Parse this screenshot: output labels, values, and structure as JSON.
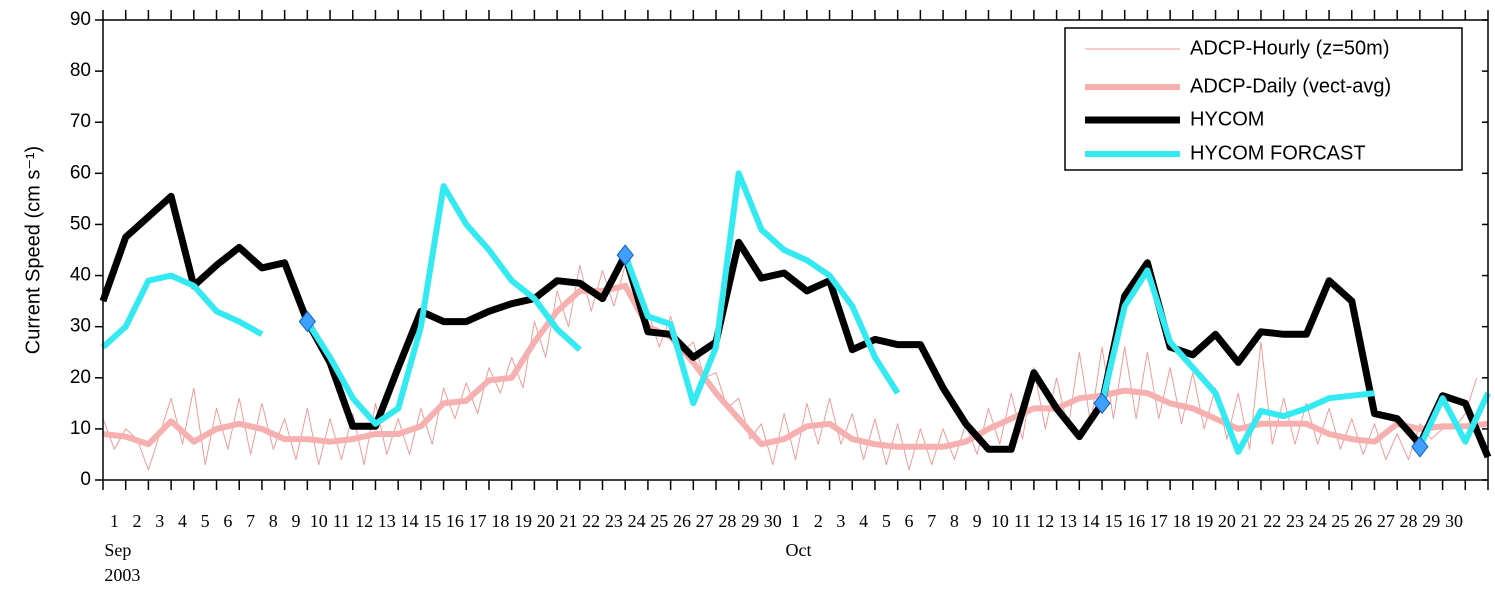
{
  "chart_data": {
    "type": "line",
    "ylabel": "Current Speed (cm s⁻¹)",
    "xlim": [
      0,
      61
    ],
    "ylim": [
      0,
      90
    ],
    "yticks": [
      0,
      10,
      20,
      30,
      40,
      50,
      60,
      70,
      80,
      90
    ],
    "xticks": [
      {
        "value": 0.5,
        "label": "1"
      },
      {
        "value": 1.5,
        "label": "2"
      },
      {
        "value": 2.5,
        "label": "3"
      },
      {
        "value": 3.5,
        "label": "4"
      },
      {
        "value": 4.5,
        "label": "5"
      },
      {
        "value": 5.5,
        "label": "6"
      },
      {
        "value": 6.5,
        "label": "7"
      },
      {
        "value": 7.5,
        "label": "8"
      },
      {
        "value": 8.5,
        "label": "9"
      },
      {
        "value": 9.5,
        "label": "10"
      },
      {
        "value": 10.5,
        "label": "11"
      },
      {
        "value": 11.5,
        "label": "12"
      },
      {
        "value": 12.5,
        "label": "13"
      },
      {
        "value": 13.5,
        "label": "14"
      },
      {
        "value": 14.5,
        "label": "15"
      },
      {
        "value": 15.5,
        "label": "16"
      },
      {
        "value": 16.5,
        "label": "17"
      },
      {
        "value": 17.5,
        "label": "18"
      },
      {
        "value": 18.5,
        "label": "19"
      },
      {
        "value": 19.5,
        "label": "20"
      },
      {
        "value": 20.5,
        "label": "21"
      },
      {
        "value": 21.5,
        "label": "22"
      },
      {
        "value": 22.5,
        "label": "23"
      },
      {
        "value": 23.5,
        "label": "24"
      },
      {
        "value": 24.5,
        "label": "25"
      },
      {
        "value": 25.5,
        "label": "26"
      },
      {
        "value": 26.5,
        "label": "27"
      },
      {
        "value": 27.5,
        "label": "28"
      },
      {
        "value": 28.5,
        "label": "29"
      },
      {
        "value": 29.5,
        "label": "30"
      },
      {
        "value": 30.5,
        "label": "1"
      },
      {
        "value": 31.5,
        "label": "2"
      },
      {
        "value": 32.5,
        "label": "3"
      },
      {
        "value": 33.5,
        "label": "4"
      },
      {
        "value": 34.5,
        "label": "5"
      },
      {
        "value": 35.5,
        "label": "6"
      },
      {
        "value": 36.5,
        "label": "7"
      },
      {
        "value": 37.5,
        "label": "8"
      },
      {
        "value": 38.5,
        "label": "9"
      },
      {
        "value": 39.5,
        "label": "10"
      },
      {
        "value": 40.5,
        "label": "11"
      },
      {
        "value": 41.5,
        "label": "12"
      },
      {
        "value": 42.5,
        "label": "13"
      },
      {
        "value": 43.5,
        "label": "14"
      },
      {
        "value": 44.5,
        "label": "15"
      },
      {
        "value": 45.5,
        "label": "16"
      },
      {
        "value": 46.5,
        "label": "17"
      },
      {
        "value": 47.5,
        "label": "18"
      },
      {
        "value": 48.5,
        "label": "19"
      },
      {
        "value": 49.5,
        "label": "20"
      },
      {
        "value": 50.5,
        "label": "21"
      },
      {
        "value": 51.5,
        "label": "22"
      },
      {
        "value": 52.5,
        "label": "23"
      },
      {
        "value": 53.5,
        "label": "24"
      },
      {
        "value": 54.5,
        "label": "25"
      },
      {
        "value": 55.5,
        "label": "26"
      },
      {
        "value": 56.5,
        "label": "27"
      },
      {
        "value": 57.5,
        "label": "28"
      },
      {
        "value": 58.5,
        "label": "29"
      },
      {
        "value": 59.5,
        "label": "30"
      }
    ],
    "month_labels": [
      {
        "value": 0.5,
        "label": "Sep",
        "sub": "2003"
      },
      {
        "value": 30.5,
        "label": "Oct"
      }
    ],
    "legend": "upper right",
    "x": [
      0,
      1,
      2,
      3,
      4,
      5,
      6,
      7,
      8,
      9,
      10,
      11,
      12,
      13,
      14,
      15,
      16,
      17,
      18,
      19,
      20,
      21,
      22,
      23,
      24,
      25,
      26,
      27,
      28,
      29,
      30,
      31,
      32,
      33,
      34,
      35,
      36,
      37,
      38,
      39,
      40,
      41,
      42,
      43,
      44,
      45,
      46,
      47,
      48,
      49,
      50,
      51,
      52,
      53,
      54,
      55,
      56,
      57,
      58,
      59,
      60,
      61
    ],
    "series": [
      {
        "name": "ADCP-Hourly (z=50m)",
        "color": "#f29a9a",
        "x": [
          0,
          0.5,
          1,
          1.5,
          2,
          2.5,
          3,
          3.5,
          4,
          4.5,
          5,
          5.5,
          6,
          6.5,
          7,
          7.5,
          8,
          8.5,
          9,
          9.5,
          10,
          10.5,
          11,
          11.5,
          12,
          12.5,
          13,
          13.5,
          14,
          14.5,
          15,
          15.5,
          16,
          16.5,
          17,
          17.5,
          18,
          18.5,
          19,
          19.5,
          20,
          20.5,
          21,
          21.5,
          22,
          22.5,
          23,
          23.5,
          24,
          24.5,
          25,
          25.5,
          26,
          26.5,
          27,
          27.5,
          28,
          28.5,
          29,
          29.5,
          30,
          30.5,
          31,
          31.5,
          32,
          32.5,
          33,
          33.5,
          34,
          34.5,
          35,
          35.5,
          36,
          36.5,
          37,
          37.5,
          38,
          38.5,
          39,
          39.5,
          40,
          40.5,
          41,
          41.5,
          42,
          42.5,
          43,
          43.5,
          44,
          44.5,
          45,
          45.5,
          46,
          46.5,
          47,
          47.5,
          48,
          48.5,
          49,
          49.5,
          50,
          50.5,
          51,
          51.5,
          52,
          52.5,
          53,
          53.5,
          54,
          54.5,
          55,
          55.5,
          56,
          56.5,
          57,
          57.5,
          58,
          58.5,
          59,
          59.5,
          60,
          60.5
        ],
        "values": [
          12,
          6,
          10,
          8,
          2,
          9,
          16,
          7,
          18,
          3,
          14,
          6,
          16,
          5,
          15,
          6,
          12,
          4,
          14,
          3,
          12,
          4,
          13,
          3,
          15,
          5,
          12,
          5,
          14,
          7,
          18,
          12,
          19,
          13,
          22,
          17,
          24,
          18,
          31,
          24,
          37,
          30,
          42,
          33,
          41,
          34,
          42,
          35,
          33,
          26,
          32,
          25,
          27,
          20,
          21,
          14,
          16,
          8,
          11,
          3,
          13,
          4,
          15,
          7,
          16,
          7,
          13,
          4,
          12,
          3,
          11,
          2,
          10,
          3,
          10,
          4,
          11,
          5,
          14,
          7,
          17,
          8,
          22,
          10,
          20,
          10,
          25,
          11,
          26,
          12,
          26,
          12,
          25,
          12,
          22,
          11,
          21,
          10,
          18,
          8,
          17,
          6,
          27,
          7,
          16,
          7,
          15,
          7,
          14,
          6,
          12,
          5,
          11,
          4,
          9,
          4,
          11,
          8,
          10,
          10,
          13,
          20
        ]
      },
      {
        "name": "ADCP-Daily (vect-avg)",
        "color": "#f7b0b0",
        "values": [
          9,
          8.5,
          7,
          11.5,
          7.5,
          10,
          11,
          10,
          8,
          8,
          7.5,
          8,
          9,
          9,
          10.5,
          15,
          15.5,
          19.5,
          20,
          27,
          33,
          37,
          37,
          38,
          30,
          28,
          23,
          17,
          12,
          7,
          8,
          10.5,
          11,
          8,
          7,
          6.5,
          6.5,
          6.5,
          7.5,
          10,
          12,
          14,
          14,
          16,
          16.5,
          17.5,
          17,
          15,
          14,
          12,
          10,
          11,
          11,
          11,
          9,
          8,
          7.5,
          11,
          10,
          10.5,
          10.5,
          11
        ]
      },
      {
        "name": "HYCOM",
        "color": "#000000",
        "values": [
          35,
          47.5,
          51.5,
          55.5,
          38,
          42,
          45.5,
          41.5,
          42.5,
          31,
          23,
          10.5,
          10.5,
          22,
          33,
          31,
          31,
          33,
          34.5,
          35.5,
          39,
          38.5,
          35.5,
          44,
          29,
          28.5,
          24,
          27,
          46.5,
          39.5,
          40.5,
          37,
          39,
          25.5,
          27.5,
          26.5,
          26.5,
          18,
          11,
          6,
          6,
          21,
          14,
          8.5,
          15,
          36,
          42.5,
          26,
          24.5,
          28.5,
          23,
          29,
          28.5,
          28.5,
          39,
          35,
          13,
          12,
          7,
          16.5,
          15,
          4.5
        ]
      },
      {
        "name": "HYCOM FORCAST",
        "color": "#33eaf2",
        "marker_x": [
          9,
          23,
          44,
          58
        ],
        "values": [
          26,
          30,
          39,
          40,
          38,
          33,
          31,
          28.5,
          null,
          31,
          24,
          16,
          11,
          14,
          30,
          57.5,
          50,
          45,
          39,
          35.5,
          29.5,
          25.5,
          null,
          44,
          32,
          30.5,
          15,
          26,
          60,
          49,
          45,
          43,
          40,
          34,
          24,
          17,
          null,
          null,
          null,
          null,
          null,
          null,
          null,
          null,
          15,
          34,
          41,
          27,
          22,
          17,
          5.5,
          13.5,
          12.5,
          14,
          16,
          16.5,
          17,
          null,
          6.5,
          16,
          7.5,
          17
        ]
      }
    ]
  }
}
